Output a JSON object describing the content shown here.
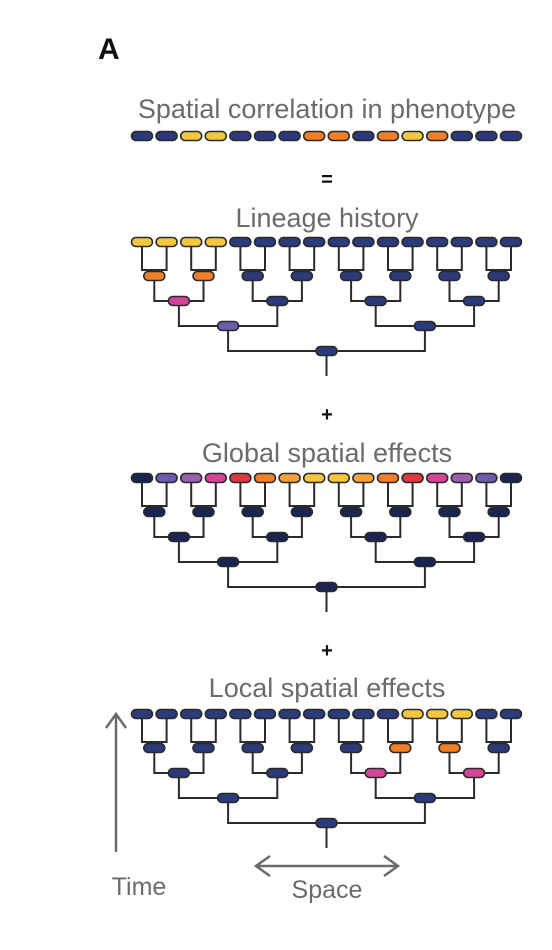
{
  "panel_label": "A",
  "row_title": "Spatial correlation in phenotype",
  "equals": "=",
  "plus": "+",
  "time_label": "Time",
  "space_label": "Space",
  "colors": {
    "navy": "#2b3a7a",
    "gold": "#f5c73c",
    "orange": "#f07f27",
    "magenta": "#d6449a",
    "purple": "#6d5bb0",
    "violet": "#9b5fae",
    "red": "#e0383c",
    "ltorange": "#f6a13a",
    "dark": "#1b2552"
  },
  "trees": [
    {
      "title": "Lineage history",
      "leaves": [
        "gold",
        "gold",
        "gold",
        "gold",
        "navy",
        "navy",
        "navy",
        "navy",
        "navy",
        "navy",
        "navy",
        "navy",
        "navy",
        "navy",
        "navy",
        "navy"
      ],
      "level1": [
        "orange",
        "orange",
        "navy",
        "navy",
        "navy",
        "navy",
        "navy",
        "navy"
      ],
      "level2": [
        "magenta",
        "navy",
        "navy",
        "navy"
      ],
      "level3": [
        "purple",
        "navy"
      ],
      "root": "navy"
    },
    {
      "title": "Global spatial effects",
      "leaves": [
        "dark",
        "purple",
        "violet",
        "magenta",
        "red",
        "orange",
        "ltorange",
        "gold",
        "gold",
        "ltorange",
        "orange",
        "red",
        "magenta",
        "violet",
        "purple",
        "dark"
      ],
      "level1": [
        "dark",
        "dark",
        "dark",
        "dark",
        "dark",
        "dark",
        "dark",
        "dark"
      ],
      "level2": [
        "dark",
        "dark",
        "dark",
        "dark"
      ],
      "level3": [
        "dark",
        "dark"
      ],
      "root": "dark"
    },
    {
      "title": "Local spatial effects",
      "leaves": [
        "navy",
        "navy",
        "navy",
        "navy",
        "navy",
        "navy",
        "navy",
        "navy",
        "navy",
        "navy",
        "navy",
        "gold",
        "gold",
        "gold",
        "navy",
        "navy"
      ],
      "level1": [
        "navy",
        "navy",
        "navy",
        "navy",
        "navy",
        "orange",
        "orange",
        "navy"
      ],
      "level2": [
        "navy",
        "navy",
        "magenta",
        "magenta"
      ],
      "level3": [
        "navy",
        "navy"
      ],
      "root": "navy"
    }
  ],
  "row_strip": [
    "navy",
    "navy",
    "gold",
    "gold",
    "navy",
    "navy",
    "navy",
    "orange",
    "orange",
    "navy",
    "orange",
    "gold",
    "orange",
    "navy",
    "navy",
    "navy"
  ]
}
